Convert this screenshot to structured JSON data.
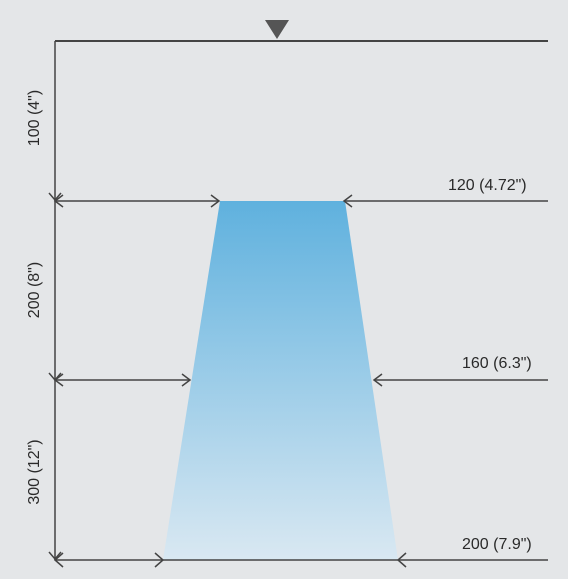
{
  "colors": {
    "background": "#e4e6e8",
    "line": "#444444",
    "marker": "#555555",
    "spray_top": "#5fb1de",
    "spray_bottom": "#d9e8f2"
  },
  "icons": {
    "surface_marker": "downward-triangle-icon"
  },
  "vertical_dimensions": [
    {
      "label": "100 (4\")",
      "value_mm": 100
    },
    {
      "label": "200 (8\")",
      "value_mm": 200
    },
    {
      "label": "300 (12\")",
      "value_mm": 300
    }
  ],
  "width_dimensions": [
    {
      "label": "120 (4.72\")",
      "value_mm": 120
    },
    {
      "label": "160 (6.3\")",
      "value_mm": 160
    },
    {
      "label": "200 (7.9\")",
      "value_mm": 200
    }
  ]
}
